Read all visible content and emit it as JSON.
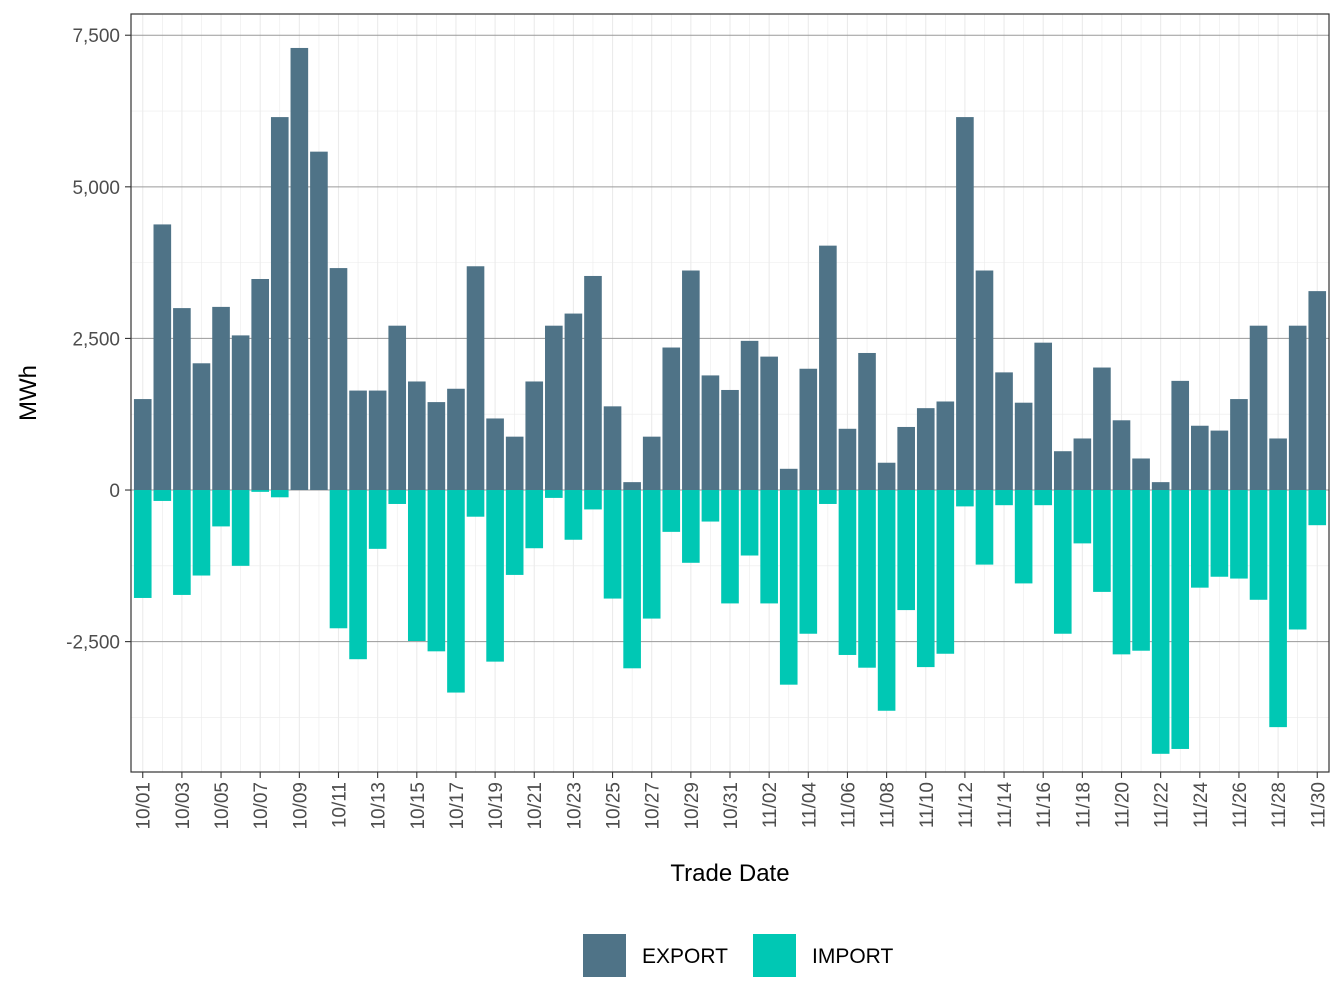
{
  "chart_data": {
    "type": "bar",
    "stacked": true,
    "title": "",
    "xlabel": "Trade Date",
    "ylabel": "MWh",
    "ylim": [
      -4650,
      7850
    ],
    "yticks": [
      -2500,
      0,
      2500,
      5000,
      7500
    ],
    "ytick_labels": [
      "-2,500",
      "0",
      "2,500",
      "5,000",
      "7,500"
    ],
    "x_tick_labels": [
      "10/01",
      "10/03",
      "10/05",
      "10/07",
      "10/09",
      "10/11",
      "10/13",
      "10/15",
      "10/17",
      "10/19",
      "10/21",
      "10/23",
      "10/25",
      "10/27",
      "10/29",
      "10/31",
      "11/02",
      "11/04",
      "11/06",
      "11/08",
      "11/10",
      "11/12",
      "11/14",
      "11/16",
      "11/18",
      "11/20",
      "11/22",
      "11/24",
      "11/26",
      "11/28",
      "11/30"
    ],
    "categories": [
      "10/01",
      "10/02",
      "10/03",
      "10/04",
      "10/05",
      "10/06",
      "10/07",
      "10/08",
      "10/09",
      "10/10",
      "10/11",
      "10/12",
      "10/13",
      "10/14",
      "10/15",
      "10/16",
      "10/17",
      "10/18",
      "10/19",
      "10/20",
      "10/21",
      "10/22",
      "10/23",
      "10/24",
      "10/25",
      "10/26",
      "10/27",
      "10/28",
      "10/29",
      "10/30",
      "10/31",
      "11/01",
      "11/02",
      "11/03",
      "11/04",
      "11/05",
      "11/06",
      "11/07",
      "11/08",
      "11/09",
      "11/10",
      "11/11",
      "11/12",
      "11/13",
      "11/14",
      "11/15",
      "11/16",
      "11/17",
      "11/18",
      "11/19",
      "11/20",
      "11/21",
      "11/22",
      "11/23",
      "11/24",
      "11/25",
      "11/26",
      "11/27",
      "11/28",
      "11/29",
      "11/30"
    ],
    "series": [
      {
        "name": "EXPORT",
        "color": "#4f7387",
        "values": [
          1500,
          4380,
          3000,
          2090,
          3020,
          2550,
          3480,
          6150,
          7290,
          5580,
          3660,
          1640,
          1640,
          2710,
          1790,
          1450,
          1670,
          3690,
          1180,
          880,
          1790,
          2710,
          2910,
          3530,
          1380,
          130,
          880,
          2350,
          3620,
          1890,
          1650,
          2460,
          2200,
          350,
          2000,
          4030,
          1010,
          2260,
          450,
          1040,
          1350,
          1460,
          6150,
          3620,
          1940,
          1440,
          2430,
          640,
          850,
          2020,
          1150,
          520,
          130,
          1800,
          1060,
          980,
          1500,
          2710,
          850,
          2710,
          3280
        ]
      },
      {
        "name": "IMPORT",
        "color": "#00c8b4",
        "values": [
          -1780,
          -180,
          -1730,
          -1410,
          -600,
          -1250,
          -30,
          -120,
          0,
          0,
          -2280,
          -2790,
          -970,
          -230,
          -2490,
          -2660,
          -3340,
          -440,
          -2830,
          -1400,
          -960,
          -130,
          -820,
          -320,
          -1790,
          -2940,
          -2120,
          -690,
          -1200,
          -520,
          -1870,
          -1080,
          -1870,
          -3210,
          -2370,
          -230,
          -2720,
          -2930,
          -3640,
          -1980,
          -2920,
          -2700,
          -270,
          -1230,
          -250,
          -1540,
          -250,
          -2370,
          -880,
          -1680,
          -2710,
          -2650,
          -4350,
          -4270,
          -1610,
          -1430,
          -1460,
          -1810,
          -3910,
          -2300,
          -580
        ]
      }
    ],
    "legend_position": "bottom",
    "grid": true
  }
}
